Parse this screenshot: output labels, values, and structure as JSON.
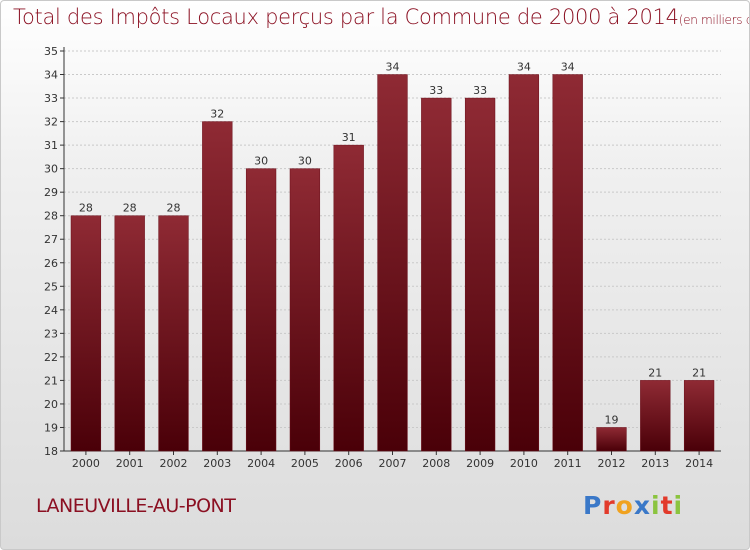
{
  "header": {
    "title": "Total des Impôts Locaux perçus par la Commune de 2000 à 2014",
    "unit": "(en milliers d'€)"
  },
  "footer": {
    "commune": "LANEUVILLE-AU-PONT",
    "logo_letters": [
      "P",
      "r",
      "o",
      "x",
      "i",
      "t",
      "i"
    ],
    "logo_colors": [
      "#3a78c8",
      "#e23a2b",
      "#f0a21f",
      "#3a78c8",
      "#8bc43f",
      "#e23a2b",
      "#8bc43f"
    ]
  },
  "colors": {
    "bar_top": "#8f2a34",
    "bar_bottom": "#4a0008",
    "text": "#8b1022",
    "axis": "#333333"
  },
  "chart_data": {
    "type": "bar",
    "categories": [
      "2000",
      "2001",
      "2002",
      "2003",
      "2004",
      "2005",
      "2006",
      "2007",
      "2008",
      "2009",
      "2010",
      "2011",
      "2012",
      "2013",
      "2014"
    ],
    "values": [
      28,
      28,
      28,
      32,
      30,
      30,
      31,
      34,
      33,
      33,
      34,
      34,
      19,
      21,
      21
    ],
    "ylim": [
      18,
      35
    ],
    "yticks": [
      "18",
      "19",
      "20",
      "21",
      "22",
      "23",
      "24",
      "25",
      "26",
      "27",
      "28",
      "29",
      "30",
      "31",
      "32",
      "33",
      "34",
      "35"
    ],
    "grid": true,
    "legend": "none"
  }
}
